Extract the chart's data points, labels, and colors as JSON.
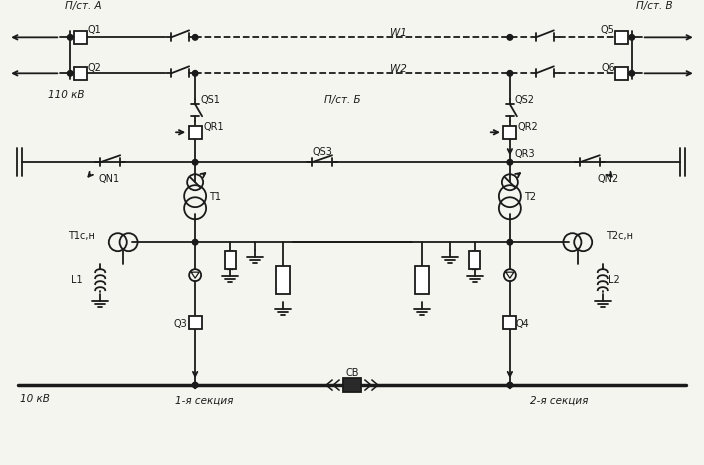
{
  "bg_color": "#f5f5f0",
  "line_color": "#1a1a1a",
  "fig_width": 7.04,
  "fig_height": 4.65,
  "dpi": 100,
  "labels": {
    "pst_A": "П/ст. А",
    "pst_B": "П/ст. В",
    "pst_Balt": "П/ст. Б",
    "Q1": "Q1",
    "Q2": "Q2",
    "Q5": "Q5",
    "Q6": "Q6",
    "Q3": "Q3",
    "Q4": "Q4",
    "W1": "W1",
    "W2": "W2",
    "QS1": "QS1",
    "QS2": "QS2",
    "QS3": "QS3",
    "QR1": "QR1",
    "QR2": "QR2",
    "QR3": "QR3",
    "QN1": "QN1",
    "QN2": "QN2",
    "T1": "T1",
    "T2": "T2",
    "T1sn": "T1с,н",
    "T2sn": "T2с,н",
    "L1": "L1",
    "L2": "L2",
    "CB": "СВ",
    "kv110": "110 кВ",
    "kv10": "10 кВ",
    "sec1": "1-я секция",
    "sec2": "2-я секция"
  }
}
